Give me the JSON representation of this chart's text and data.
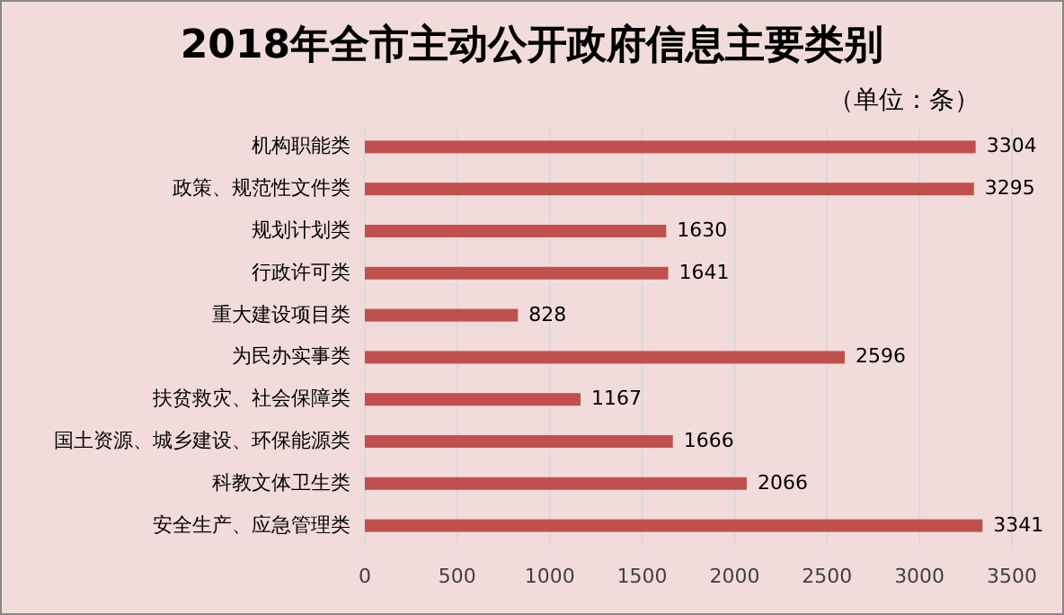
{
  "chart_data": {
    "type": "bar",
    "orientation": "horizontal",
    "title": "2018年全市主动公开政府信息主要类别",
    "subtitle": "（单位：条）",
    "categories": [
      "机构职能类",
      "政策、规范性文件类",
      "规划计划类",
      "行政许可类",
      "重大建设项目类",
      "为民办实事类",
      "扶贫救灾、社会保障类",
      "国土资源、城乡建设、环保能源类",
      "科教文体卫生类",
      "安全生产、应急管理类"
    ],
    "values": [
      3304,
      3295,
      1630,
      1641,
      828,
      2596,
      1167,
      1666,
      2066,
      3341
    ],
    "color": "#c0504d",
    "xlim": [
      0,
      3500
    ],
    "xticks": [
      0,
      500,
      1000,
      1500,
      2000,
      2500,
      3000,
      3500
    ],
    "grid": "x",
    "data_labels": true
  }
}
